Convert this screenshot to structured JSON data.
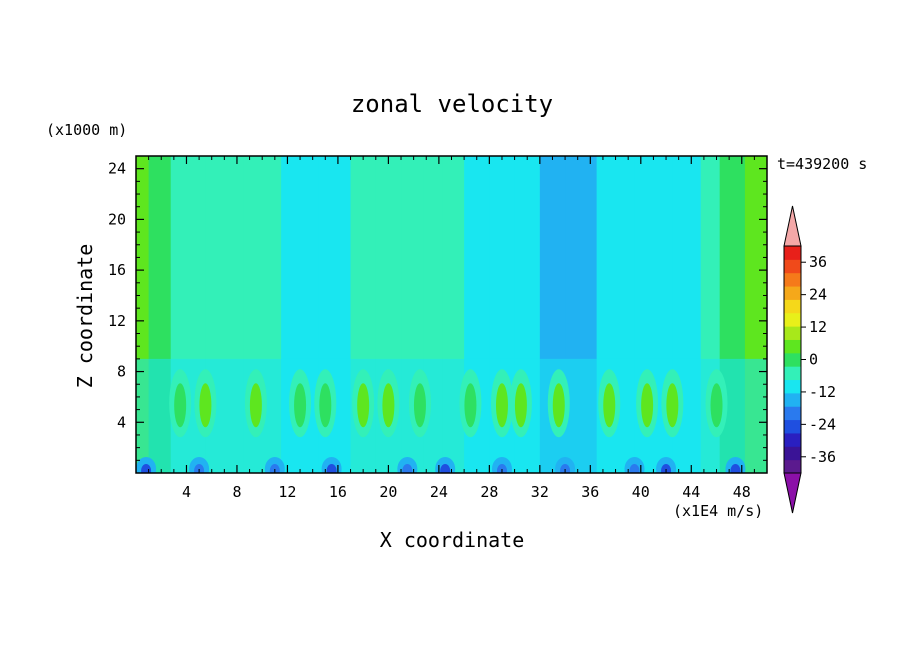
{
  "chart_data": {
    "type": "heatmap",
    "title": "zonal velocity",
    "xlabel": "X coordinate",
    "ylabel": "Z coordinate",
    "x_unit_label": "(x1E4 m/s)",
    "y_unit_label": "(x1000 m)",
    "time_label": "t=439200 s",
    "xlim": [
      0,
      50
    ],
    "ylim": [
      0,
      25
    ],
    "x_ticks": [
      4,
      8,
      12,
      16,
      20,
      24,
      28,
      32,
      36,
      40,
      44,
      48
    ],
    "y_ticks": [
      4,
      8,
      12,
      16,
      20,
      24
    ],
    "colorbar": {
      "min": -42,
      "max": 42,
      "step": 6,
      "tick_values": [
        -36,
        -24,
        -12,
        0,
        12,
        24,
        36
      ],
      "colors": [
        "#5b1a8e",
        "#3a1396",
        "#2a1fc0",
        "#1f4fe0",
        "#2a7aee",
        "#21b2f2",
        "#19e6f0",
        "#33f0b8",
        "#2ee060",
        "#5ee61f",
        "#a8e81a",
        "#e8f01a",
        "#f5d81a",
        "#f5a81a",
        "#f57a1a",
        "#f04a1a",
        "#e8201a"
      ],
      "under_color": "#8b10a8",
      "over_color": "#f4a8a8"
    },
    "x_bands": [
      {
        "x": 0.5,
        "value": 14
      },
      {
        "x": 1.5,
        "value": 6
      },
      {
        "x": 4,
        "value": 2
      },
      {
        "x": 7,
        "value": 3
      },
      {
        "x": 10,
        "value": 1
      },
      {
        "x": 13,
        "value": -4
      },
      {
        "x": 16,
        "value": -1
      },
      {
        "x": 18,
        "value": 1
      },
      {
        "x": 20,
        "value": 2
      },
      {
        "x": 22,
        "value": 0
      },
      {
        "x": 23.5,
        "value": 3
      },
      {
        "x": 25,
        "value": 2
      },
      {
        "x": 27,
        "value": -3
      },
      {
        "x": 29,
        "value": -3
      },
      {
        "x": 31,
        "value": -6
      },
      {
        "x": 33,
        "value": -10
      },
      {
        "x": 35,
        "value": -7
      },
      {
        "x": 38,
        "value": -4
      },
      {
        "x": 41,
        "value": -1
      },
      {
        "x": 44,
        "value": -3
      },
      {
        "x": 45.5,
        "value": 4
      },
      {
        "x": 47,
        "value": 10
      },
      {
        "x": 49.5,
        "value": 14
      }
    ],
    "plumes": [
      {
        "x": 3.5,
        "value": 10
      },
      {
        "x": 5.5,
        "value": 14
      },
      {
        "x": 9.5,
        "value": 12
      },
      {
        "x": 13,
        "value": 11
      },
      {
        "x": 15,
        "value": 10
      },
      {
        "x": 18,
        "value": 14
      },
      {
        "x": 20,
        "value": 13
      },
      {
        "x": 22.5,
        "value": 11
      },
      {
        "x": 26.5,
        "value": 10
      },
      {
        "x": 29,
        "value": 14
      },
      {
        "x": 30.5,
        "value": 12
      },
      {
        "x": 33.5,
        "value": 13
      },
      {
        "x": 37.5,
        "value": 12
      },
      {
        "x": 40.5,
        "value": 13
      },
      {
        "x": 42.5,
        "value": 12
      },
      {
        "x": 46,
        "value": 9
      }
    ],
    "near_surface_jets": [
      {
        "x": 0.8,
        "value": -22
      },
      {
        "x": 5,
        "value": -16
      },
      {
        "x": 11,
        "value": -18
      },
      {
        "x": 15.5,
        "value": -20
      },
      {
        "x": 21.5,
        "value": -18
      },
      {
        "x": 24.5,
        "value": -20
      },
      {
        "x": 29,
        "value": -16
      },
      {
        "x": 34,
        "value": -18
      },
      {
        "x": 39.5,
        "value": -18
      },
      {
        "x": 42,
        "value": -20
      },
      {
        "x": 47.5,
        "value": -22
      }
    ]
  }
}
